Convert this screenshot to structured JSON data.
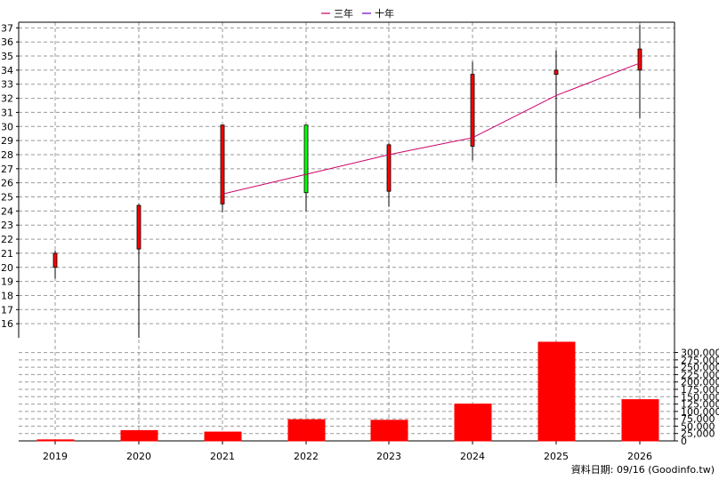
{
  "chart_data": {
    "type": "candlestick",
    "legend": {
      "placement": "top-center",
      "items": [
        {
          "name": "三年",
          "color": "#cc0066"
        },
        {
          "name": "十年",
          "color": "#6600cc"
        }
      ]
    },
    "categories": [
      "2019",
      "2020",
      "2021",
      "2022",
      "2023",
      "2024",
      "2025",
      "2026"
    ],
    "price_axis": {
      "ylim": [
        15,
        37.4
      ],
      "ticks": [
        16,
        17,
        18,
        19,
        20,
        21,
        22,
        23,
        24,
        25,
        26,
        27,
        28,
        29,
        30,
        31,
        32,
        33,
        34,
        35,
        36,
        37
      ],
      "side": "left",
      "grid": true
    },
    "candles": [
      {
        "year": "2019",
        "open": 20.0,
        "close": 21.0,
        "high": 21.2,
        "low": 19.2,
        "color": "#ff0000"
      },
      {
        "year": "2020",
        "open": 21.3,
        "close": 24.4,
        "high": 24.5,
        "low": 15.0,
        "color": "#ff0000"
      },
      {
        "year": "2021",
        "open": 24.5,
        "close": 30.1,
        "high": 30.1,
        "low": 23.9,
        "color": "#ff0000"
      },
      {
        "year": "2022",
        "open": 30.1,
        "close": 25.3,
        "high": 30.1,
        "low": 24.0,
        "color": "#00ff00"
      },
      {
        "year": "2023",
        "open": 25.4,
        "close": 28.7,
        "high": 28.8,
        "low": 24.3,
        "color": "#ff0000"
      },
      {
        "year": "2024",
        "open": 28.6,
        "close": 33.7,
        "high": 34.6,
        "low": 27.6,
        "color": "#ff0000"
      },
      {
        "year": "2025",
        "open": 33.7,
        "close": 34.0,
        "high": 35.4,
        "low": 26.0,
        "color": "#ff0000"
      },
      {
        "year": "2026",
        "open": 34.0,
        "close": 35.5,
        "high": 37.2,
        "low": 30.6,
        "color": "#ff0000"
      }
    ],
    "series": [
      {
        "name": "三年",
        "color": "#cc0066",
        "points": [
          {
            "x": "2021",
            "y": 25.2
          },
          {
            "x": "2022",
            "y": 26.6
          },
          {
            "x": "2023",
            "y": 28.0
          },
          {
            "x": "2024",
            "y": 29.2
          },
          {
            "x": "2025",
            "y": 32.2
          },
          {
            "x": "2026",
            "y": 34.5
          }
        ]
      }
    ],
    "volume": {
      "type": "bar",
      "color": "#ff0000",
      "values": [
        3500,
        35000,
        30000,
        72000,
        70000,
        125000,
        335000,
        140000
      ],
      "ylim": [
        0,
        350000
      ],
      "ticks": [
        0,
        25000,
        50000,
        75000,
        100000,
        125000,
        150000,
        175000,
        200000,
        225000,
        250000,
        275000,
        300000
      ],
      "tick_labels": [
        "0",
        "25,000",
        "50,000",
        "75,000",
        "100,000",
        "125,000",
        "150,000",
        "175,000",
        "200,000",
        "225,000",
        "250,000",
        "275,000",
        "300,000"
      ],
      "side": "right",
      "grid": true
    },
    "footer": "資料日期: 09/16  (Goodinfo.tw)"
  }
}
